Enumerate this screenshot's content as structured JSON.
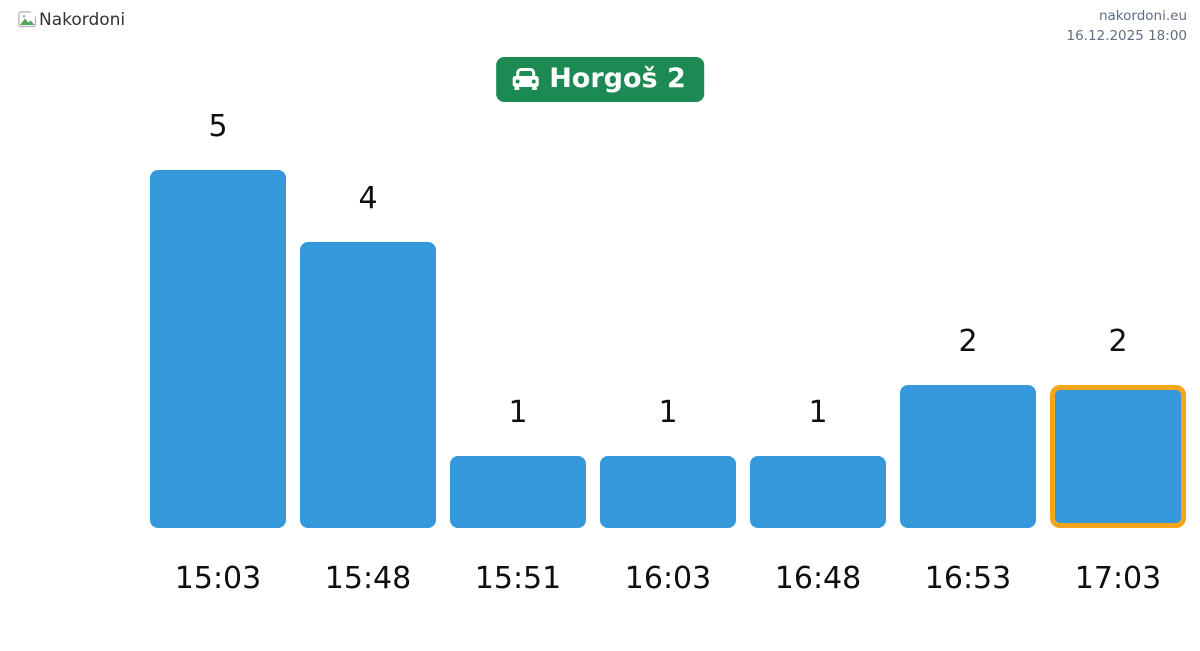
{
  "header": {
    "logo_alt": "Nakordoni",
    "site": "nakordoni.eu",
    "timestamp": "16.12.2025 18:00"
  },
  "badge": {
    "label": "Horgoš 2",
    "icon": "car-front-icon",
    "bg_color": "#1c8a52",
    "text_color": "#ffffff"
  },
  "chart_data": {
    "type": "bar",
    "title": "Horgoš 2",
    "categories": [
      "15:03",
      "15:48",
      "15:51",
      "16:03",
      "16:48",
      "16:53",
      "17:03"
    ],
    "values": [
      5,
      4,
      1,
      1,
      1,
      2,
      2
    ],
    "xlabel": "",
    "ylabel": "",
    "ylim": [
      0,
      5
    ],
    "grid": false,
    "legend": false,
    "value_labels": true,
    "bar_color": "#3498db",
    "highlight": {
      "index": 6,
      "category": "17:03",
      "border_color": "#f7a41d"
    }
  }
}
